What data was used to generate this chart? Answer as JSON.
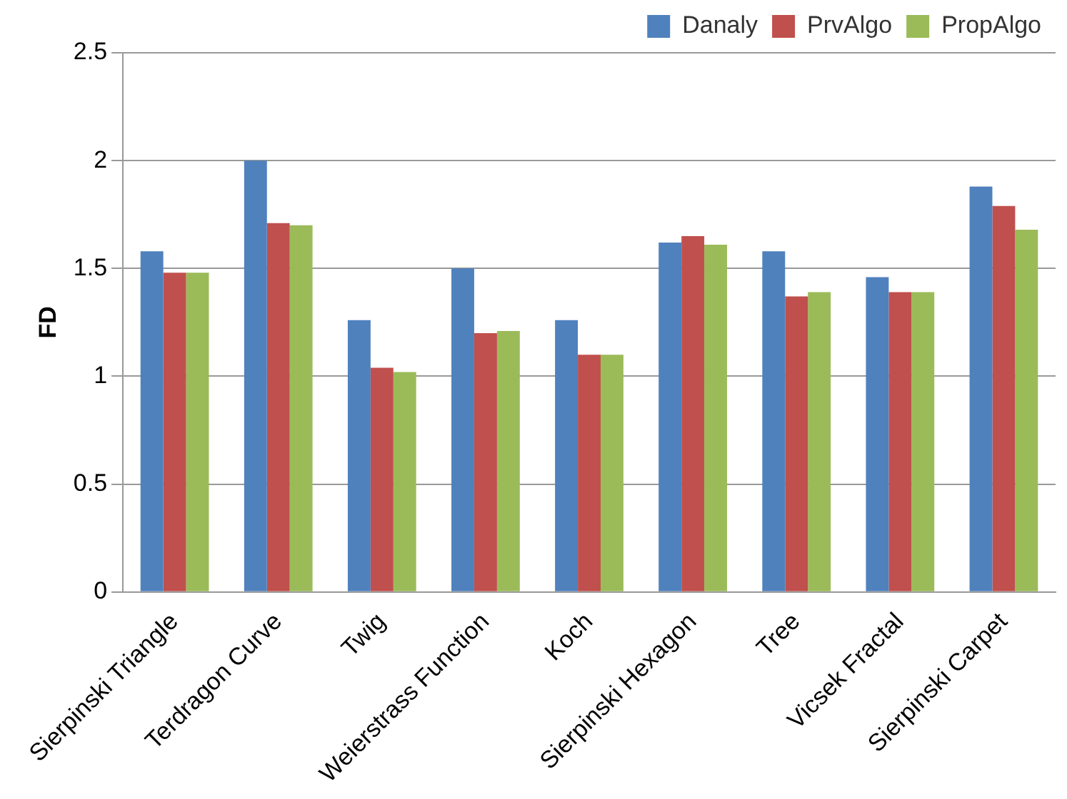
{
  "chart_data": {
    "type": "bar",
    "ylabel": "FD",
    "categories": [
      "Sierpinski Triangle",
      "Terdragon Curve",
      "Twig",
      "Weierstrass Function",
      "Koch",
      "Sierpinski Hexagon",
      "Tree",
      "Vicsek Fractal",
      "Sierpinski Carpet"
    ],
    "series": [
      {
        "name": "Danaly",
        "color": "#4f81bd",
        "values": [
          1.58,
          2.0,
          1.26,
          1.5,
          1.26,
          1.62,
          1.58,
          1.46,
          1.88
        ]
      },
      {
        "name": "PrvAlgo",
        "color": "#c0504d",
        "values": [
          1.48,
          1.71,
          1.04,
          1.2,
          1.1,
          1.65,
          1.37,
          1.39,
          1.79
        ]
      },
      {
        "name": "PropAlgo",
        "color": "#9bbb59",
        "values": [
          1.48,
          1.7,
          1.02,
          1.21,
          1.1,
          1.61,
          1.39,
          1.39,
          1.68
        ]
      }
    ],
    "ylim": [
      0,
      2.5
    ],
    "yticks": [
      0,
      0.5,
      1,
      1.5,
      2,
      2.5
    ],
    "grid": "y",
    "legend": "top right"
  }
}
